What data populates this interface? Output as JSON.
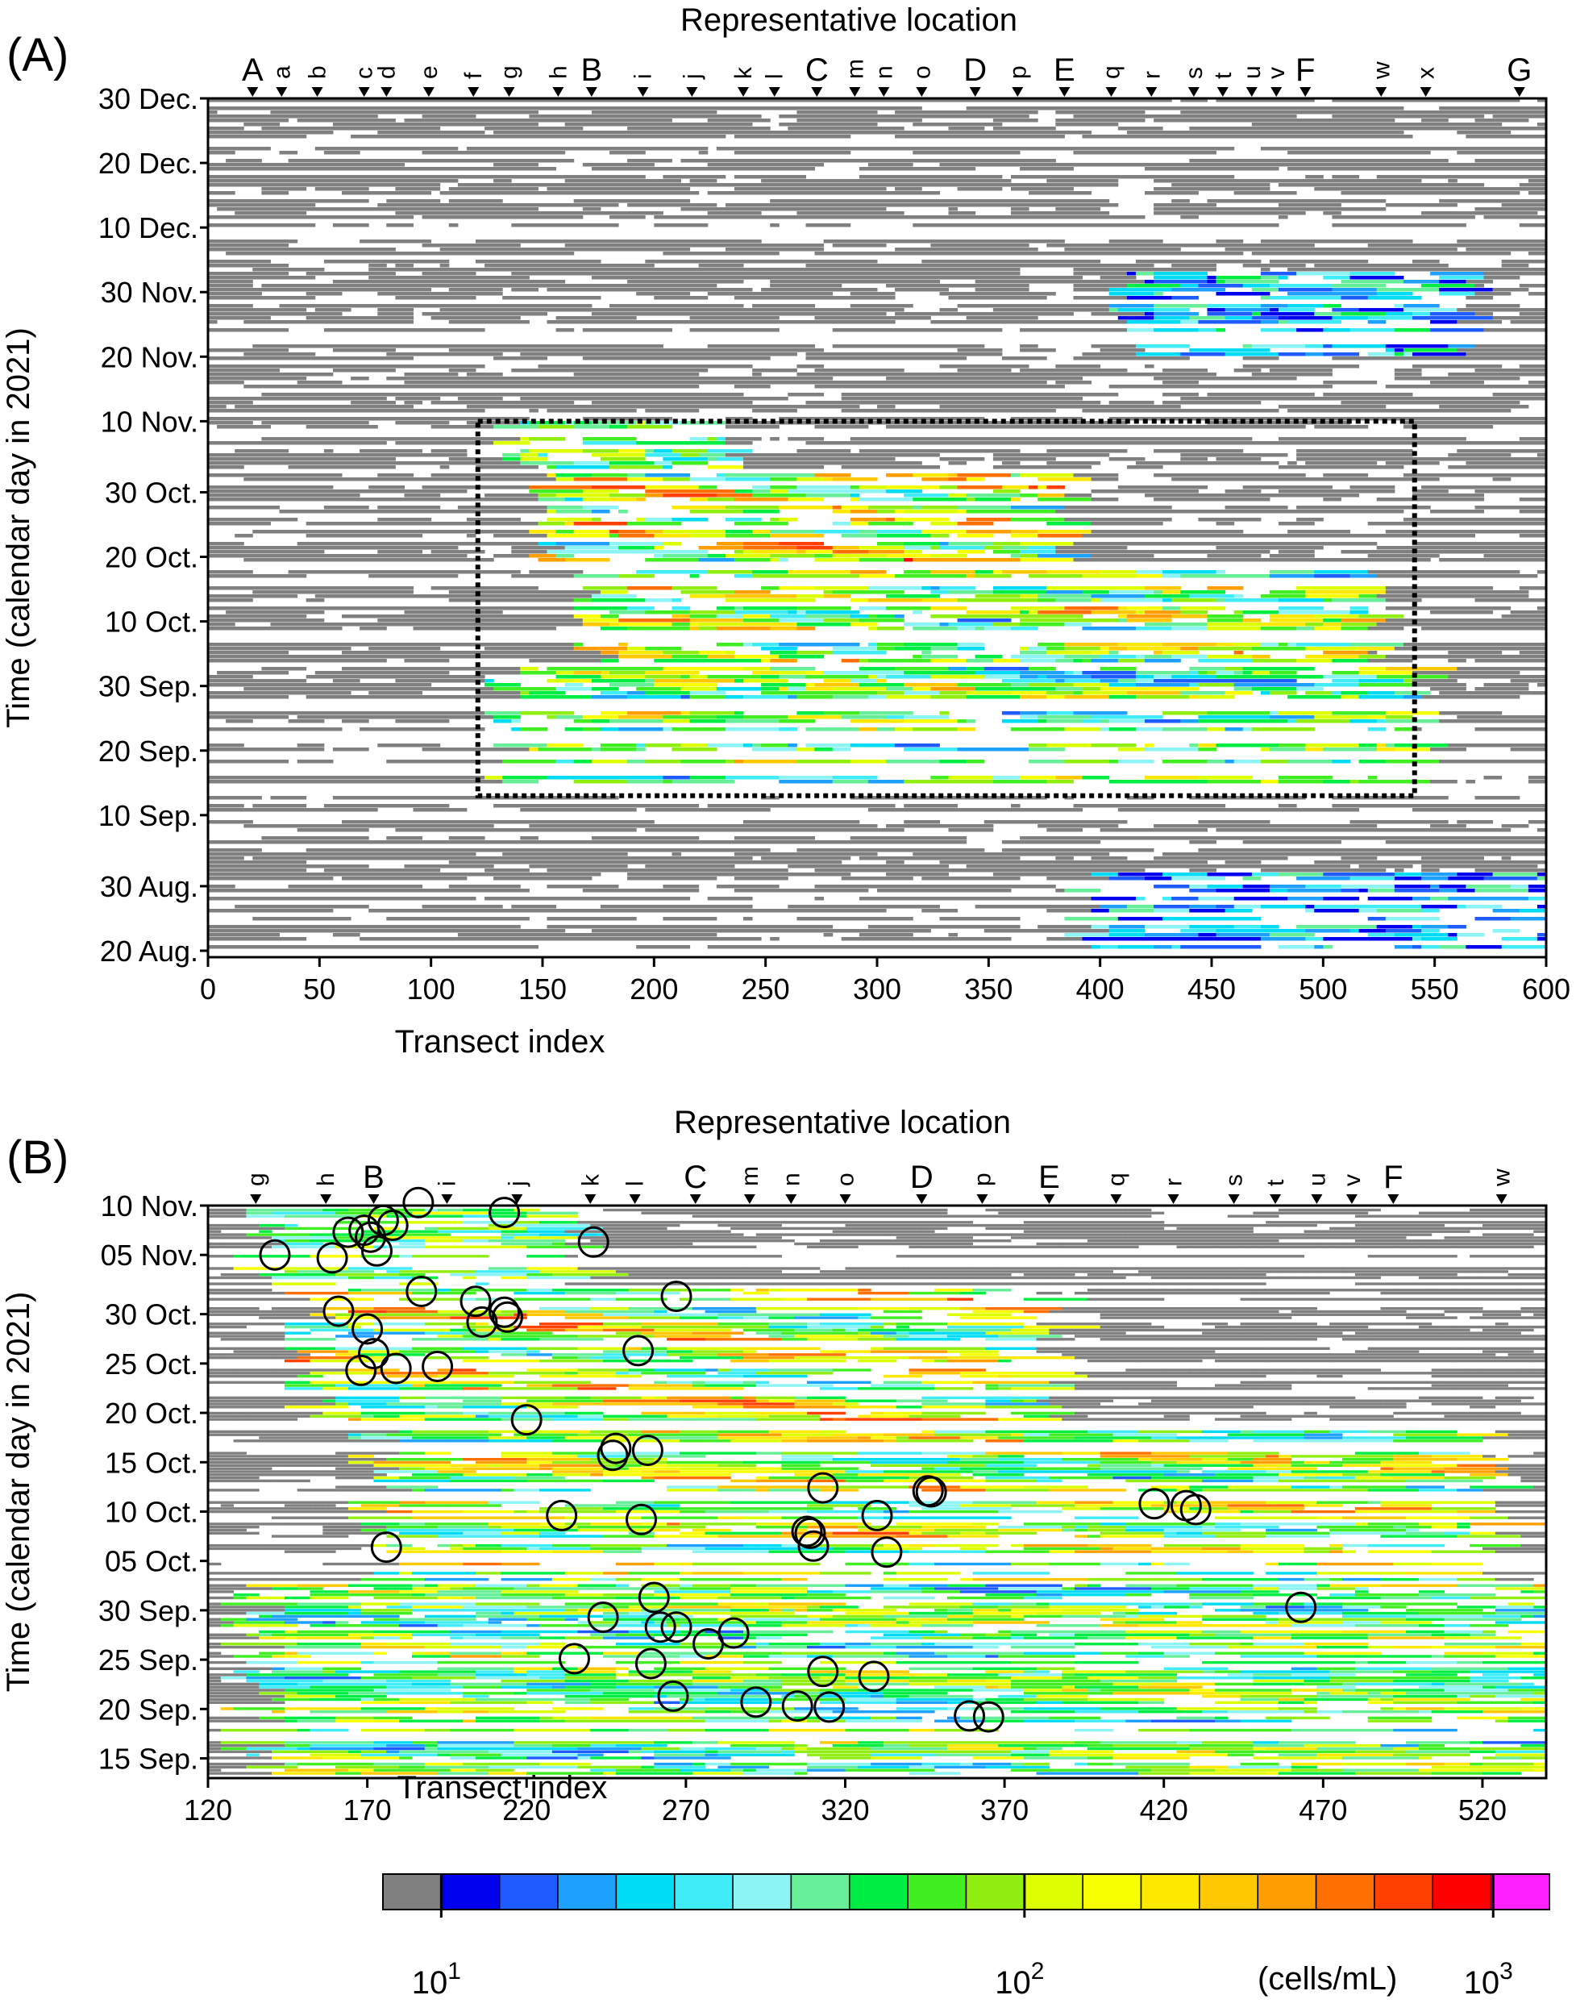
{
  "panels": [
    {
      "panel_label": "(A)",
      "top_title": "Representative location",
      "xlabel": "Transect index",
      "ylabel": "Time (calendar day in 2021)",
      "xlim": [
        0,
        600
      ],
      "xticks": [
        "0",
        "50",
        "100",
        "150",
        "200",
        "250",
        "300",
        "350",
        "400",
        "450",
        "500",
        "550",
        "600"
      ],
      "ylim_days": [
        231,
        364
      ],
      "yticks": [
        {
          "label": "20 Aug.",
          "day": 232
        },
        {
          "label": "30 Aug.",
          "day": 242
        },
        {
          "label": "10 Sep.",
          "day": 253
        },
        {
          "label": "20 Sep.",
          "day": 263
        },
        {
          "label": "30 Sep.",
          "day": 273
        },
        {
          "label": "10 Oct.",
          "day": 283
        },
        {
          "label": "20 Oct.",
          "day": 293
        },
        {
          "label": "30 Oct.",
          "day": 303
        },
        {
          "label": "10 Nov.",
          "day": 314
        },
        {
          "label": "20 Nov.",
          "day": 324
        },
        {
          "label": "30 Nov.",
          "day": 334
        },
        {
          "label": "10 Dec.",
          "day": 344
        },
        {
          "label": "20 Dec.",
          "day": 354
        },
        {
          "label": "30 Dec.",
          "day": 364
        }
      ],
      "locations": [
        {
          "label": "A",
          "x": 20,
          "big": true
        },
        {
          "label": "a",
          "x": 33,
          "big": false
        },
        {
          "label": "b",
          "x": 49,
          "big": false
        },
        {
          "label": "c",
          "x": 70,
          "big": false
        },
        {
          "label": "d",
          "x": 80,
          "big": false
        },
        {
          "label": "e",
          "x": 99,
          "big": false
        },
        {
          "label": "f",
          "x": 119,
          "big": false
        },
        {
          "label": "g",
          "x": 135,
          "big": false
        },
        {
          "label": "h",
          "x": 157,
          "big": false
        },
        {
          "label": "B",
          "x": 172,
          "big": true
        },
        {
          "label": "i",
          "x": 195,
          "big": false
        },
        {
          "label": "j",
          "x": 217,
          "big": false
        },
        {
          "label": "k",
          "x": 240,
          "big": false
        },
        {
          "label": "l",
          "x": 254,
          "big": false
        },
        {
          "label": "C",
          "x": 273,
          "big": true
        },
        {
          "label": "m",
          "x": 290,
          "big": false
        },
        {
          "label": "n",
          "x": 303,
          "big": false
        },
        {
          "label": "o",
          "x": 320,
          "big": false
        },
        {
          "label": "D",
          "x": 344,
          "big": true
        },
        {
          "label": "p",
          "x": 363,
          "big": false
        },
        {
          "label": "E",
          "x": 384,
          "big": true
        },
        {
          "label": "q",
          "x": 405,
          "big": false
        },
        {
          "label": "r",
          "x": 423,
          "big": false
        },
        {
          "label": "s",
          "x": 442,
          "big": false
        },
        {
          "label": "t",
          "x": 455,
          "big": false
        },
        {
          "label": "u",
          "x": 468,
          "big": false
        },
        {
          "label": "v",
          "x": 479,
          "big": false
        },
        {
          "label": "F",
          "x": 492,
          "big": true
        },
        {
          "label": "w",
          "x": 526,
          "big": false
        },
        {
          "label": "x",
          "x": 546,
          "big": false
        },
        {
          "label": "G",
          "x": 588,
          "big": true
        }
      ],
      "highlight_box": {
        "x_range": [
          121,
          541
        ],
        "day_range": [
          256,
          314
        ]
      }
    },
    {
      "panel_label": "(B)",
      "top_title": "Representative location",
      "xlabel": "Transect index",
      "ylabel": "Time (calendar day in 2021)",
      "xlim": [
        120,
        540
      ],
      "xticks": [
        "120",
        "170",
        "220",
        "270",
        "320",
        "370",
        "420",
        "470",
        "520"
      ],
      "ylim_days": [
        256,
        314
      ],
      "yticks": [
        {
          "label": "15 Sep.",
          "day": 258
        },
        {
          "label": "20 Sep.",
          "day": 263
        },
        {
          "label": "25 Sep.",
          "day": 268
        },
        {
          "label": "30 Sep.",
          "day": 273
        },
        {
          "label": "05 Oct.",
          "day": 278
        },
        {
          "label": "10 Oct.",
          "day": 283
        },
        {
          "label": "15 Oct.",
          "day": 288
        },
        {
          "label": "20 Oct.",
          "day": 293
        },
        {
          "label": "25 Oct.",
          "day": 298
        },
        {
          "label": "30 Oct.",
          "day": 303
        },
        {
          "label": "05 Nov.",
          "day": 309
        },
        {
          "label": "10 Nov.",
          "day": 314
        }
      ],
      "locations": [
        {
          "label": "g",
          "x": 135,
          "big": false
        },
        {
          "label": "h",
          "x": 157,
          "big": false
        },
        {
          "label": "B",
          "x": 172,
          "big": true
        },
        {
          "label": "i",
          "x": 195,
          "big": false
        },
        {
          "label": "j",
          "x": 217,
          "big": false
        },
        {
          "label": "k",
          "x": 240,
          "big": false
        },
        {
          "label": "l",
          "x": 254,
          "big": false
        },
        {
          "label": "C",
          "x": 273,
          "big": true
        },
        {
          "label": "m",
          "x": 290,
          "big": false
        },
        {
          "label": "n",
          "x": 303,
          "big": false
        },
        {
          "label": "o",
          "x": 320,
          "big": false
        },
        {
          "label": "D",
          "x": 344,
          "big": true
        },
        {
          "label": "p",
          "x": 363,
          "big": false
        },
        {
          "label": "E",
          "x": 384,
          "big": true
        },
        {
          "label": "q",
          "x": 405,
          "big": false
        },
        {
          "label": "r",
          "x": 423,
          "big": false
        },
        {
          "label": "s",
          "x": 442,
          "big": false
        },
        {
          "label": "t",
          "x": 455,
          "big": false
        },
        {
          "label": "u",
          "x": 468,
          "big": false
        },
        {
          "label": "v",
          "x": 479,
          "big": false
        },
        {
          "label": "F",
          "x": 492,
          "big": true
        },
        {
          "label": "w",
          "x": 526,
          "big": false
        }
      ],
      "circles": [
        {
          "x": 186,
          "day": 314.3
        },
        {
          "x": 213,
          "day": 313.3
        },
        {
          "x": 175,
          "day": 312.5
        },
        {
          "x": 178,
          "day": 312
        },
        {
          "x": 169,
          "day": 311.5
        },
        {
          "x": 164,
          "day": 311.3
        },
        {
          "x": 171,
          "day": 310.8
        },
        {
          "x": 241,
          "day": 310.3
        },
        {
          "x": 141,
          "day": 309
        },
        {
          "x": 159,
          "day": 308.7
        },
        {
          "x": 173,
          "day": 309.4
        },
        {
          "x": 187,
          "day": 305.3
        },
        {
          "x": 267,
          "day": 304.8
        },
        {
          "x": 204,
          "day": 304.3
        },
        {
          "x": 213,
          "day": 303.2
        },
        {
          "x": 214,
          "day": 302.7
        },
        {
          "x": 161,
          "day": 303.3
        },
        {
          "x": 206,
          "day": 302.2
        },
        {
          "x": 170,
          "day": 301.5
        },
        {
          "x": 172,
          "day": 299
        },
        {
          "x": 255,
          "day": 299.3
        },
        {
          "x": 168,
          "day": 297.3
        },
        {
          "x": 179,
          "day": 297.5
        },
        {
          "x": 192,
          "day": 297.7
        },
        {
          "x": 220,
          "day": 292.3
        },
        {
          "x": 248,
          "day": 289.4
        },
        {
          "x": 247,
          "day": 288.7
        },
        {
          "x": 258,
          "day": 289.2
        },
        {
          "x": 313,
          "day": 285.4
        },
        {
          "x": 346,
          "day": 285.1
        },
        {
          "x": 347,
          "day": 285
        },
        {
          "x": 417,
          "day": 283.8
        },
        {
          "x": 427,
          "day": 283.6
        },
        {
          "x": 430,
          "day": 283.2
        },
        {
          "x": 231,
          "day": 282.6
        },
        {
          "x": 256,
          "day": 282.2
        },
        {
          "x": 330,
          "day": 282.6
        },
        {
          "x": 308,
          "day": 281
        },
        {
          "x": 309,
          "day": 280.8
        },
        {
          "x": 310,
          "day": 279.5
        },
        {
          "x": 176,
          "day": 279.4
        },
        {
          "x": 333,
          "day": 278.9
        },
        {
          "x": 463,
          "day": 273.3
        },
        {
          "x": 260,
          "day": 274.3
        },
        {
          "x": 244,
          "day": 272.3
        },
        {
          "x": 262,
          "day": 271.3
        },
        {
          "x": 267,
          "day": 271.3
        },
        {
          "x": 285,
          "day": 270.7
        },
        {
          "x": 277,
          "day": 269.6
        },
        {
          "x": 235,
          "day": 268.1
        },
        {
          "x": 259,
          "day": 267.6
        },
        {
          "x": 313,
          "day": 266.8
        },
        {
          "x": 329,
          "day": 266.3
        },
        {
          "x": 266,
          "day": 264.3
        },
        {
          "x": 292,
          "day": 263.7
        },
        {
          "x": 305,
          "day": 263.3
        },
        {
          "x": 315,
          "day": 263.2
        },
        {
          "x": 359,
          "day": 262.3
        },
        {
          "x": 365,
          "day": 262.2
        }
      ]
    }
  ],
  "colorbar": {
    "unit": "(cells/mL)",
    "tick_labels": [
      {
        "base": "10",
        "exp": "1"
      },
      {
        "base": "10",
        "exp": "2"
      },
      {
        "base": "10",
        "exp": "3"
      }
    ],
    "colors": [
      "#808080",
      "#0000ee",
      "#1f5cff",
      "#1ea0ff",
      "#00dcf5",
      "#40ecf8",
      "#8cf4f4",
      "#66ee99",
      "#00ee44",
      "#40ee22",
      "#90ee10",
      "#ddff00",
      "#f8ff00",
      "#ffe800",
      "#ffc800",
      "#ff9e00",
      "#ff7000",
      "#ff4000",
      "#ff0000",
      "#ff20ff"
    ],
    "missing_color": "#ffffff"
  }
}
